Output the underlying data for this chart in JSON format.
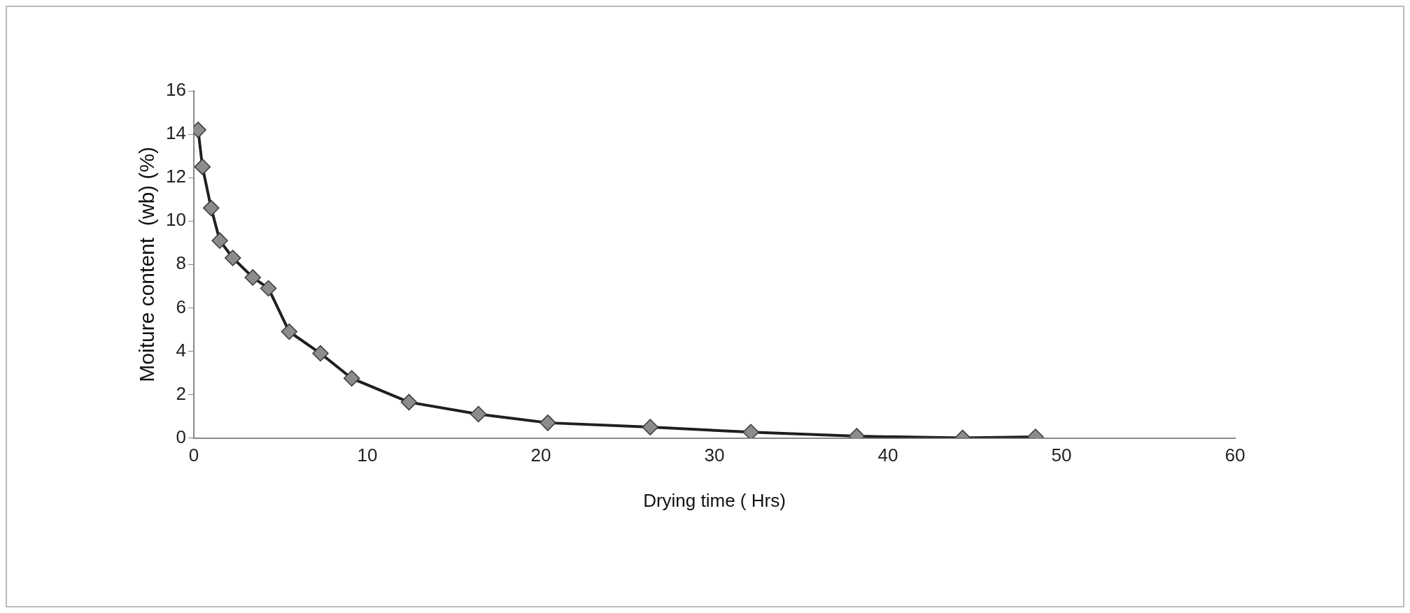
{
  "chart_data": {
    "type": "line",
    "xlabel": "Drying time ( Hrs)",
    "ylabel": "Moiture content  (wb) (%)",
    "x": [
      0.25,
      0.5,
      1,
      1.5,
      2.25,
      3.4,
      4.3,
      5.5,
      7.3,
      9.1,
      12.4,
      16.4,
      20.4,
      26.3,
      32.1,
      38.2,
      44.3,
      48.5
    ],
    "series": [
      {
        "color": "#1f1f1f",
        "values": [
          14.2,
          12.5,
          10.6,
          9.1,
          8.3,
          7.4,
          6.9,
          4.9,
          3.9,
          2.75,
          1.65,
          1.1,
          0.7,
          0.5,
          0.27,
          0.08,
          0,
          0.05
        ]
      }
    ],
    "xlim": [
      0,
      60
    ],
    "xticks": [
      0,
      10,
      20,
      30,
      40,
      50,
      60
    ],
    "ylim": [
      0,
      16
    ],
    "yticks": [
      0,
      2,
      4,
      6,
      8,
      10,
      12,
      14,
      16
    ],
    "grid": false,
    "legend": false,
    "marker": "diamond",
    "line_style": "solid"
  }
}
